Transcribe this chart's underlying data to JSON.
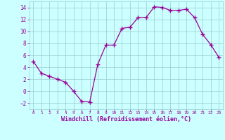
{
  "x": [
    0,
    1,
    2,
    3,
    4,
    5,
    6,
    7,
    8,
    9,
    10,
    11,
    12,
    13,
    14,
    15,
    16,
    17,
    18,
    19,
    20,
    21,
    22,
    23
  ],
  "y": [
    5,
    3,
    2.5,
    2,
    1.5,
    0,
    -1.7,
    -1.8,
    4.5,
    7.7,
    7.7,
    10.5,
    10.7,
    12.3,
    12.3,
    14.1,
    14.0,
    13.5,
    13.5,
    13.7,
    12.3,
    9.5,
    7.8,
    5.7
  ],
  "line_color": "#990099",
  "marker": "+",
  "marker_color": "#990099",
  "bg_color": "#ccffff",
  "grid_color": "#99cccc",
  "xlabel": "Windchill (Refroidissement éolien,°C)",
  "xlabel_color": "#990099",
  "tick_color": "#990099",
  "ylim": [
    -3,
    15
  ],
  "xlim": [
    -0.5,
    23.5
  ],
  "yticks": [
    -2,
    0,
    2,
    4,
    6,
    8,
    10,
    12,
    14
  ],
  "xticks": [
    0,
    1,
    2,
    3,
    4,
    5,
    6,
    7,
    8,
    9,
    10,
    11,
    12,
    13,
    14,
    15,
    16,
    17,
    18,
    19,
    20,
    21,
    22,
    23
  ],
  "xtick_labels": [
    "0",
    "1",
    "2",
    "3",
    "4",
    "5",
    "6",
    "7",
    "8",
    "9",
    "10",
    "11",
    "12",
    "13",
    "14",
    "15",
    "16",
    "17",
    "18",
    "19",
    "20",
    "21",
    "22",
    "23"
  ]
}
